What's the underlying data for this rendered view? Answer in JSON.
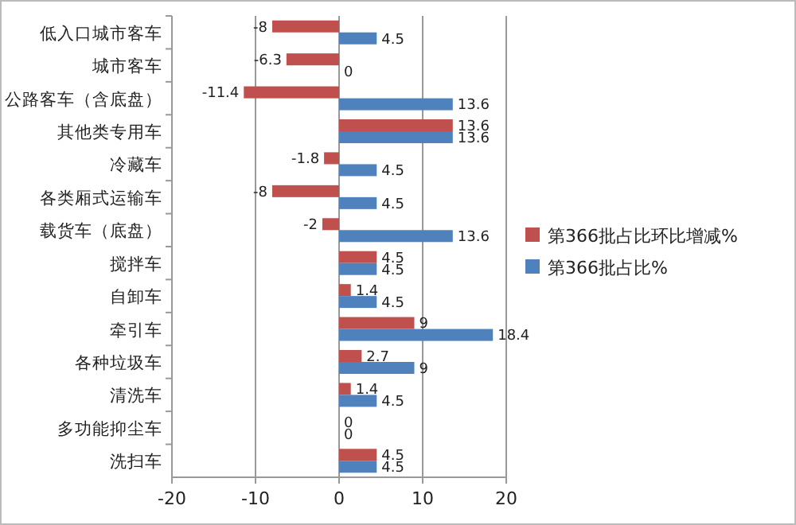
{
  "chart_data": {
    "type": "bar",
    "orientation": "horizontal",
    "categories": [
      "低入口城市客车",
      "城市客车",
      "公路客车（含底盘）",
      "其他类专用车",
      "冷藏车",
      "各类厢式运输车",
      "载货车（底盘）",
      "搅拌车",
      "自卸车",
      "牵引车",
      "各种垃圾车",
      "清洗车",
      "多功能抑尘车",
      "洗扫车"
    ],
    "series": [
      {
        "name": "第366批占比环比增减%",
        "color": "#c0504d",
        "values": [
          -8,
          -6.3,
          -11.4,
          13.6,
          -1.8,
          -8,
          -2,
          4.5,
          1.4,
          9,
          2.7,
          1.4,
          0,
          4.5
        ]
      },
      {
        "name": "第366批占比%",
        "color": "#4f81bd",
        "values": [
          4.5,
          0,
          13.6,
          13.6,
          4.5,
          4.5,
          13.6,
          4.5,
          4.5,
          18.4,
          9,
          4.5,
          0,
          4.5
        ]
      }
    ],
    "xlim": [
      -20,
      20
    ],
    "xticks": [
      -20,
      -10,
      0,
      10,
      20
    ],
    "grid": "x",
    "legend": "right",
    "data_labels": true
  }
}
